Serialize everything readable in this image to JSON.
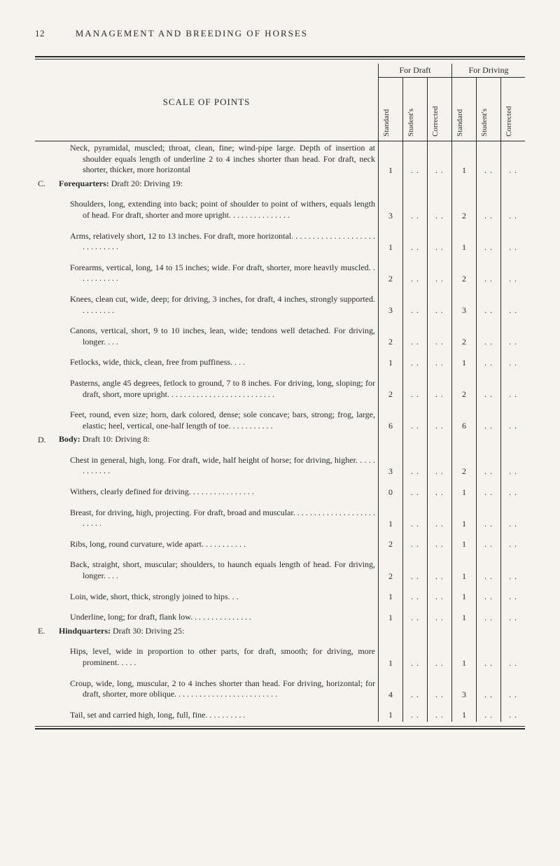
{
  "page_number": "12",
  "running_head": "MANAGEMENT AND BREEDING OF HORSES",
  "table_title": "SCALE OF POINTS",
  "group_headers": [
    "For Draft",
    "For Driving"
  ],
  "col_headers": [
    "Standard",
    "Student's",
    "Corrected",
    "Standard",
    "Student's",
    "Corrected"
  ],
  "dots": ". .",
  "sections": {
    "C": "C.",
    "D": "D.",
    "E": "E."
  },
  "rows": [
    {
      "section": "C",
      "lines": [
        "Neck, pyramidal, muscled; throat, clean, fine; wind-pipe large.  Depth of insertion at shoulder equals length of underline 2 to 4 inches shorter than head. For draft, neck shorter, thicker, more horizontal",
        "Forequarters:  Draft 20:  Driving 19:"
      ],
      "std_draft": "1",
      "std_drive": "1"
    },
    {
      "lines": [
        "Shoulders, long, extending into back; point of shoulder to point of withers, equals length of head.  For draft, shorter and more upright. . . . . . . . . . . . . . ."
      ],
      "std_draft": "3",
      "std_drive": "2"
    },
    {
      "lines": [
        "Arms, relatively short, 12 to 13 inches.  For draft, more horizontal. . . . . . . . . . . . . . . . . . . . . . . . . . . . ."
      ],
      "std_draft": "1",
      "std_drive": "1"
    },
    {
      "lines": [
        "Forearms, vertical, long, 14 to 15 inches; wide.  For draft, shorter, more heavily muscled. . . . . . . . . . ."
      ],
      "std_draft": "2",
      "std_drive": "2"
    },
    {
      "lines": [
        "Knees, clean cut, wide, deep; for driving, 3 inches, for draft, 4 inches, strongly supported. . . . . . . . ."
      ],
      "std_draft": "3",
      "std_drive": "3"
    },
    {
      "lines": [
        "Canons, vertical, short, 9 to 10 inches, lean, wide; tendons well detached.  For driving, longer. . . ."
      ],
      "std_draft": "2",
      "std_drive": "2"
    },
    {
      "lines": [
        "Fetlocks, wide, thick, clean, free from puffiness. . . ."
      ],
      "std_draft": "1",
      "std_drive": "1"
    },
    {
      "lines": [
        "Pasterns, angle 45 degrees, fetlock to ground, 7 to 8 inches.  For driving, long, sloping; for draft, short, more upright. . . . . . . . . . . . . . . . . . . . . . . . . ."
      ],
      "std_draft": "2",
      "std_drive": "2"
    },
    {
      "section": "D",
      "lines": [
        "Feet, round, even size; horn, dark colored, dense; sole concave; bars, strong; frog, large, elastic; heel, vertical, one-half length of toe. . . . . . . . . . .",
        "Body:  Draft 10:  Driving 8:"
      ],
      "std_draft": "6",
      "std_drive": "6"
    },
    {
      "lines": [
        "Chest in general, high, long.  For draft, wide, half height of horse; for driving, higher. . . . . . . . . . . ."
      ],
      "std_draft": "3",
      "std_drive": "2"
    },
    {
      "lines": [
        "Withers, clearly defined for driving. . . . . . . . . . . . . . . ."
      ],
      "std_draft": "0",
      "std_drive": "1"
    },
    {
      "lines": [
        "Breast, for driving, high, projecting.  For draft, broad and muscular. . . . . . . . . . . . . . . . . . . . . . . . ."
      ],
      "std_draft": "1",
      "std_drive": "1"
    },
    {
      "lines": [
        "Ribs, long, round curvature, wide apart. . . . . . . . . . ."
      ],
      "std_draft": "2",
      "std_drive": "1"
    },
    {
      "lines": [
        "Back, straight, short, muscular; shoulders, to haunch equals length of head.  For driving, longer. . . ."
      ],
      "std_draft": "2",
      "std_drive": "1"
    },
    {
      "lines": [
        "Loin, wide, short, thick, strongly joined to hips. . ."
      ],
      "std_draft": "1",
      "std_drive": "1"
    },
    {
      "section": "E",
      "lines": [
        "Underline, long; for draft, flank low. . . . . . . . . . . . . . .",
        "Hindquarters:  Draft 30:  Driving 25:"
      ],
      "std_draft": "1",
      "std_drive": "1"
    },
    {
      "lines": [
        "Hips, level, wide in proportion to other parts, for draft, smooth; for driving, more prominent. . . . ."
      ],
      "std_draft": "1",
      "std_drive": "1"
    },
    {
      "lines": [
        "Croup, wide, long, muscular, 2 to 4 inches shorter than head.  For driving, horizontal; for draft, shorter, more oblique. . . . . . . . . . . . . . . . . . . . . . . . ."
      ],
      "std_draft": "4",
      "std_drive": "3"
    },
    {
      "lines": [
        "Tail, set and carried high, long, full, fine. . . . . . . . . ."
      ],
      "std_draft": "1",
      "std_drive": "1"
    }
  ]
}
